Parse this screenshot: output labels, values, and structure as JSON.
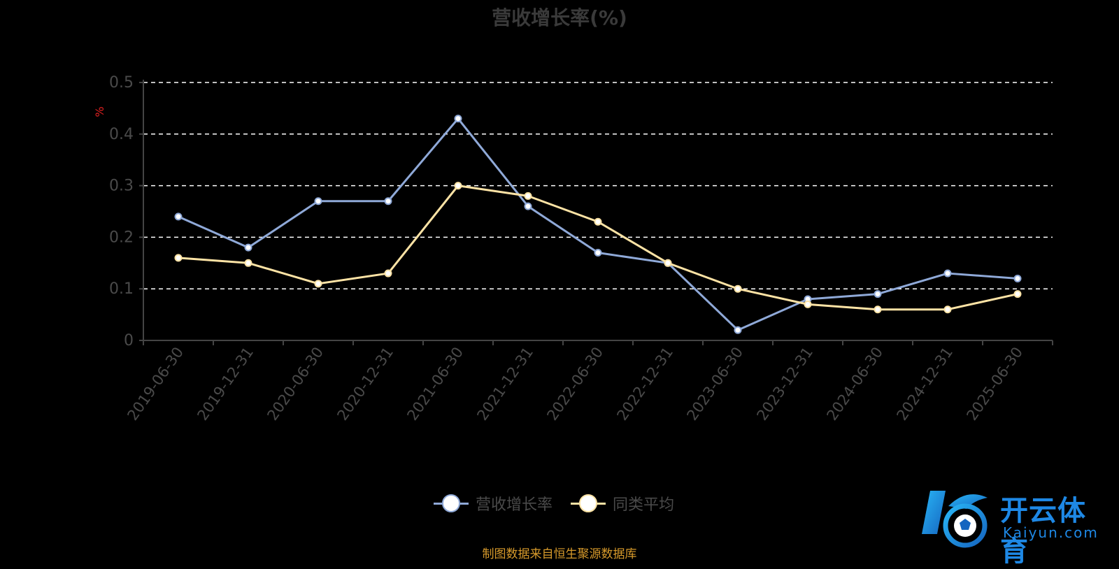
{
  "title": "营收增长率(%)",
  "source_note": "制图数据来自恒生聚源数据库",
  "logo": {
    "name": "开云体育",
    "url": "Kaiyun.com",
    "mark": "K"
  },
  "colors": {
    "series1": "#8fa9d8",
    "series2": "#fde3a5",
    "grid": "#ffffff",
    "axis": "#444444",
    "tick_label": "#4a4a4a",
    "unit_label": "#e02020",
    "source": "#d79a2b",
    "logo": "#1e88e5"
  },
  "chart_data": {
    "type": "line",
    "title": "营收增长率(%)",
    "ylabel": "%",
    "ylim": [
      0,
      0.5
    ],
    "yticks": [
      0,
      0.1,
      0.2,
      0.3,
      0.4,
      0.5
    ],
    "ytick_labels": [
      "0",
      "0.1",
      "0.2",
      "0.3",
      "0.4",
      "0.5"
    ],
    "grid": "dashed-horizontal",
    "legend_position": "bottom",
    "categories": [
      "2019-06-30",
      "2019-12-31",
      "2020-06-30",
      "2020-12-31",
      "2021-06-30",
      "2021-12-31",
      "2022-06-30",
      "2022-12-31",
      "2023-06-30",
      "2023-12-31",
      "2024-06-30",
      "2024-12-31",
      "2025-06-30"
    ],
    "series": [
      {
        "name": "营收增长率",
        "color": "#8fa9d8",
        "values": [
          0.24,
          0.18,
          0.27,
          0.27,
          0.43,
          0.26,
          0.17,
          0.15,
          0.02,
          0.08,
          0.09,
          0.13,
          0.12
        ]
      },
      {
        "name": "同类平均",
        "color": "#fde3a5",
        "values": [
          0.16,
          0.15,
          0.11,
          0.13,
          0.3,
          0.28,
          0.23,
          0.15,
          0.1,
          0.07,
          0.06,
          0.06,
          0.09
        ]
      }
    ]
  }
}
